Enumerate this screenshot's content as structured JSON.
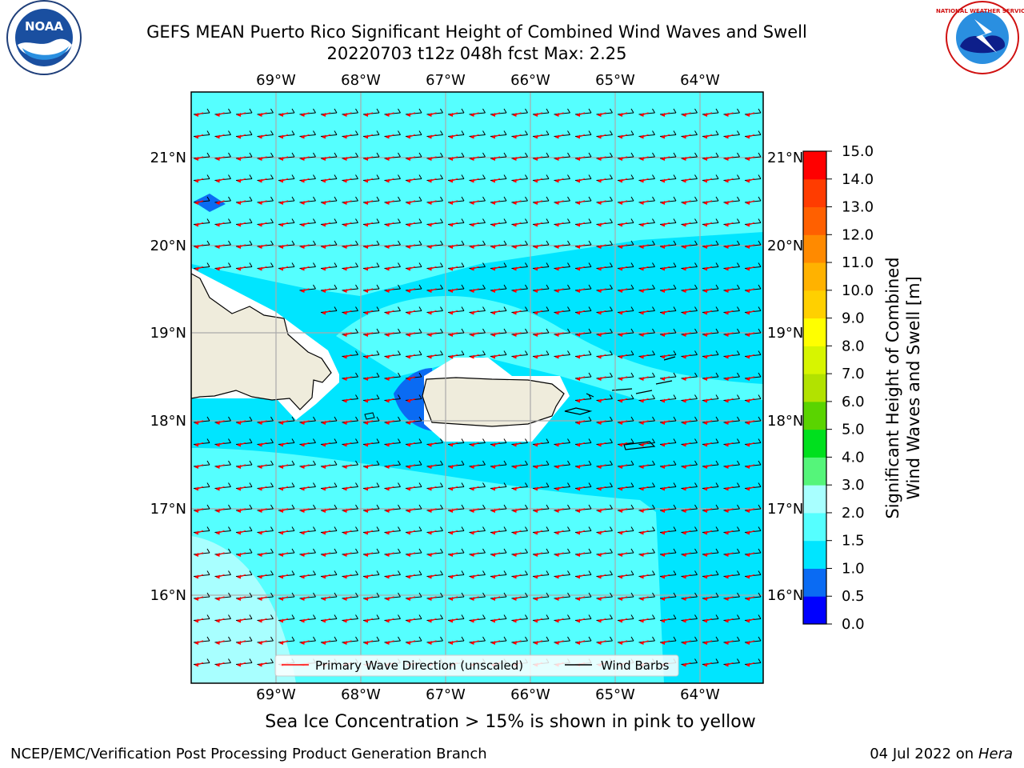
{
  "titles": {
    "line1": "GEFS MEAN Puerto Rico Significant Height of Combined Wind Waves and Swell",
    "line2": "20220703 t12z 048h fcst   Max: 2.25"
  },
  "subtitle": "Sea Ice Concentration > 15% is shown in pink to yellow",
  "credit": "NCEP/EMC/Verification Post Processing Product Generation Branch",
  "stamp": {
    "date": "04 Jul 2022 on ",
    "host": "Hera"
  },
  "logos": {
    "left": "NOAA",
    "right": "NATIONAL WEATHER SERVICE"
  },
  "map": {
    "lon_labels": [
      "69°W",
      "68°W",
      "67°W",
      "66°W",
      "65°W",
      "64°W"
    ],
    "lat_labels": [
      "21°N",
      "20°N",
      "19°N",
      "18°N",
      "17°N",
      "16°N"
    ]
  },
  "colorbar": {
    "label_line1": "Significant Height of Combined",
    "label_line2": "Wind Waves and Swell [m]",
    "ticks": [
      "0.0",
      "0.5",
      "1.0",
      "1.5",
      "2.0",
      "3.0",
      "4.0",
      "5.0",
      "6.0",
      "7.0",
      "8.0",
      "9.0",
      "10.0",
      "11.0",
      "12.0",
      "13.0",
      "14.0",
      "15.0"
    ],
    "colors": [
      "#0000ff",
      "#0a6bf3",
      "#00e5ff",
      "#55ffff",
      "#a8ffff",
      "#55f57a",
      "#00e01e",
      "#5ad400",
      "#b2e200",
      "#d7f500",
      "#ffff00",
      "#ffd000",
      "#ffb200",
      "#ff8a00",
      "#ff6000",
      "#ff3c00",
      "#ff0000"
    ]
  },
  "legend": {
    "wave_label": "Primary Wave Direction (unscaled)",
    "barb_label": "Wind Barbs",
    "wave_color": "#ff0000",
    "barb_color": "#000000"
  }
}
